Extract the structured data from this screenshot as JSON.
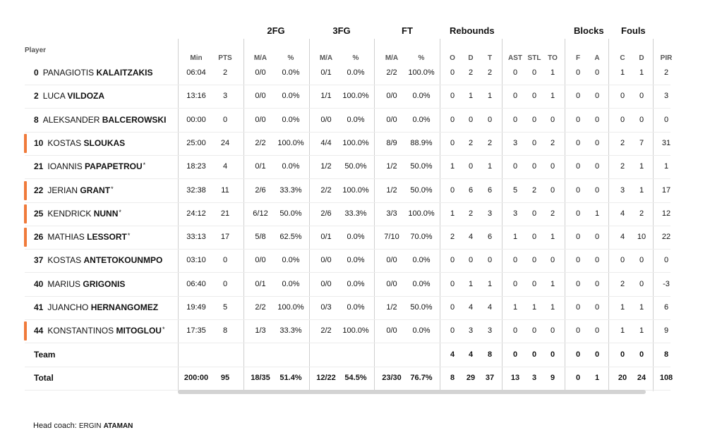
{
  "header": {
    "player_label": "Player",
    "groups": [
      {
        "key": "2fg",
        "label": "2FG"
      },
      {
        "key": "3fg",
        "label": "3FG"
      },
      {
        "key": "ft",
        "label": "FT"
      },
      {
        "key": "reb",
        "label": "Rebounds"
      },
      {
        "key": "blk",
        "label": "Blocks"
      },
      {
        "key": "fouls",
        "label": "Fouls"
      }
    ],
    "subcolumns": [
      "Min",
      "PTS",
      "M/A",
      "%",
      "M/A",
      "%",
      "M/A",
      "%",
      "O",
      "D",
      "T",
      "AST",
      "STL",
      "TO",
      "F",
      "A",
      "C",
      "D",
      "PIR"
    ]
  },
  "rows": [
    {
      "num": "0",
      "first": "PANAGIOTIS",
      "last": "KALAITZAKIS",
      "star": "",
      "starter": false,
      "stats": [
        "06:04",
        "2",
        "0/0",
        "0.0%",
        "0/1",
        "0.0%",
        "2/2",
        "100.0%",
        "0",
        "2",
        "2",
        "0",
        "0",
        "1",
        "0",
        "0",
        "1",
        "1",
        "2"
      ]
    },
    {
      "num": "2",
      "first": "LUCA",
      "last": "VILDOZA",
      "star": "",
      "starter": false,
      "stats": [
        "13:16",
        "3",
        "0/0",
        "0.0%",
        "1/1",
        "100.0%",
        "0/0",
        "0.0%",
        "0",
        "1",
        "1",
        "0",
        "0",
        "1",
        "0",
        "0",
        "0",
        "0",
        "3"
      ]
    },
    {
      "num": "8",
      "first": "ALEKSANDER",
      "last": "BALCEROWSKI",
      "star": "",
      "starter": false,
      "stats": [
        "00:00",
        "0",
        "0/0",
        "0.0%",
        "0/0",
        "0.0%",
        "0/0",
        "0.0%",
        "0",
        "0",
        "0",
        "0",
        "0",
        "0",
        "0",
        "0",
        "0",
        "0",
        "0"
      ]
    },
    {
      "num": "10",
      "first": "KOSTAS",
      "last": "SLOUKAS",
      "star": "",
      "starter": true,
      "stats": [
        "25:00",
        "24",
        "2/2",
        "100.0%",
        "4/4",
        "100.0%",
        "8/9",
        "88.9%",
        "0",
        "2",
        "2",
        "3",
        "0",
        "2",
        "0",
        "0",
        "2",
        "7",
        "31"
      ]
    },
    {
      "num": "21",
      "first": "IOANNIS",
      "last": "PAPAPETROU",
      "star": "*",
      "starter": false,
      "stats": [
        "18:23",
        "4",
        "0/1",
        "0.0%",
        "1/2",
        "50.0%",
        "1/2",
        "50.0%",
        "1",
        "0",
        "1",
        "0",
        "0",
        "0",
        "0",
        "0",
        "2",
        "1",
        "1"
      ]
    },
    {
      "num": "22",
      "first": "JERIAN",
      "last": "GRANT",
      "star": "*",
      "starter": true,
      "stats": [
        "32:38",
        "11",
        "2/6",
        "33.3%",
        "2/2",
        "100.0%",
        "1/2",
        "50.0%",
        "0",
        "6",
        "6",
        "5",
        "2",
        "0",
        "0",
        "0",
        "3",
        "1",
        "17"
      ]
    },
    {
      "num": "25",
      "first": "KENDRICK",
      "last": "NUNN",
      "star": "*",
      "starter": true,
      "stats": [
        "24:12",
        "21",
        "6/12",
        "50.0%",
        "2/6",
        "33.3%",
        "3/3",
        "100.0%",
        "1",
        "2",
        "3",
        "3",
        "0",
        "2",
        "0",
        "1",
        "4",
        "2",
        "12"
      ]
    },
    {
      "num": "26",
      "first": "MATHIAS",
      "last": "LESSORT",
      "star": "*",
      "starter": true,
      "stats": [
        "33:13",
        "17",
        "5/8",
        "62.5%",
        "0/1",
        "0.0%",
        "7/10",
        "70.0%",
        "2",
        "4",
        "6",
        "1",
        "0",
        "1",
        "0",
        "0",
        "4",
        "10",
        "22"
      ]
    },
    {
      "num": "37",
      "first": "KOSTAS",
      "last": "ANTETOKOUNMPO",
      "star": "",
      "starter": false,
      "stats": [
        "03:10",
        "0",
        "0/0",
        "0.0%",
        "0/0",
        "0.0%",
        "0/0",
        "0.0%",
        "0",
        "0",
        "0",
        "0",
        "0",
        "0",
        "0",
        "0",
        "0",
        "0",
        "0"
      ]
    },
    {
      "num": "40",
      "first": "MARIUS",
      "last": "GRIGONIS",
      "star": "",
      "starter": false,
      "stats": [
        "06:40",
        "0",
        "0/1",
        "0.0%",
        "0/0",
        "0.0%",
        "0/0",
        "0.0%",
        "0",
        "1",
        "1",
        "0",
        "0",
        "1",
        "0",
        "0",
        "2",
        "0",
        "-3"
      ]
    },
    {
      "num": "41",
      "first": "JUANCHO",
      "last": "HERNANGOMEZ",
      "star": "",
      "starter": false,
      "stats": [
        "19:49",
        "5",
        "2/2",
        "100.0%",
        "0/3",
        "0.0%",
        "1/2",
        "50.0%",
        "0",
        "4",
        "4",
        "1",
        "1",
        "1",
        "0",
        "0",
        "1",
        "1",
        "6"
      ]
    },
    {
      "num": "44",
      "first": "KONSTANTINOS",
      "last": "MITOGLOU",
      "star": "*",
      "starter": true,
      "stats": [
        "17:35",
        "8",
        "1/3",
        "33.3%",
        "2/2",
        "100.0%",
        "0/0",
        "0.0%",
        "0",
        "3",
        "3",
        "0",
        "0",
        "0",
        "0",
        "0",
        "1",
        "1",
        "9"
      ]
    }
  ],
  "team_row": {
    "label": "Team",
    "stats": [
      "",
      "",
      "",
      "",
      "",
      "",
      "",
      "",
      "4",
      "4",
      "8",
      "0",
      "0",
      "0",
      "0",
      "0",
      "0",
      "0",
      "8"
    ]
  },
  "total_row": {
    "label": "Total",
    "stats": [
      "200:00",
      "95",
      "18/35",
      "51.4%",
      "12/22",
      "54.5%",
      "23/30",
      "76.7%",
      "8",
      "29",
      "37",
      "13",
      "3",
      "9",
      "0",
      "1",
      "20",
      "24",
      "108"
    ]
  },
  "coach": {
    "label": "Head coach:",
    "first": "ERGIN",
    "last": "ATAMAN"
  },
  "colors": {
    "starter_bar": "#f07a3a",
    "divider": "#cfcfcf"
  }
}
